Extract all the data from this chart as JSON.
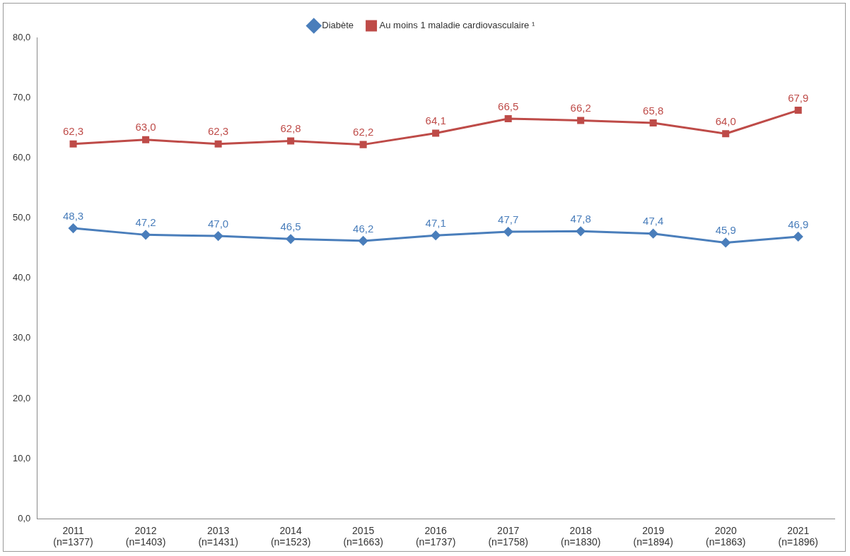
{
  "chart_data": {
    "type": "line",
    "categories": [
      "2011\n(n=1377)",
      "2012\n(n=1403)",
      "2013\n(n=1431)",
      "2014\n(n=1523)",
      "2015\n(n=1663)",
      "2016\n(n=1737)",
      "2017\n(n=1758)",
      "2018\n(n=1830)",
      "2019\n(n=1894)",
      "2020\n(n=1863)",
      "2021\n(n=1896)"
    ],
    "series": [
      {
        "name": "Diabète",
        "color": "#4a7ebb",
        "marker": "diamond",
        "values": [
          48.3,
          47.2,
          47.0,
          46.5,
          46.2,
          47.1,
          47.7,
          47.8,
          47.4,
          45.9,
          46.9
        ],
        "value_labels": [
          "48,3",
          "47,2",
          "47,0",
          "46,5",
          "46,2",
          "47,1",
          "47,7",
          "47,8",
          "47,4",
          "45,9",
          "46,9"
        ]
      },
      {
        "name": "Au moins 1 maladie cardiovasculaire ¹",
        "color": "#be4b48",
        "marker": "square",
        "values": [
          62.3,
          63.0,
          62.3,
          62.8,
          62.2,
          64.1,
          66.5,
          66.2,
          65.8,
          64.0,
          67.9
        ],
        "value_labels": [
          "62,3",
          "63,0",
          "62,3",
          "62,8",
          "62,2",
          "64,1",
          "66,5",
          "66,2",
          "65,8",
          "64,0",
          "67,9"
        ]
      }
    ],
    "ylim": [
      0,
      80
    ],
    "yticks": [
      {
        "value": 0,
        "label": "0,0"
      },
      {
        "value": 10,
        "label": "10,0"
      },
      {
        "value": 20,
        "label": "20,0"
      },
      {
        "value": 30,
        "label": "30,0"
      },
      {
        "value": 40,
        "label": "40,0"
      },
      {
        "value": 50,
        "label": "50,0"
      },
      {
        "value": 60,
        "label": "60,0"
      },
      {
        "value": 70,
        "label": "70,0"
      },
      {
        "value": 80,
        "label": "80,0"
      }
    ],
    "grid": false,
    "legend": "top",
    "line_style": "solid"
  }
}
